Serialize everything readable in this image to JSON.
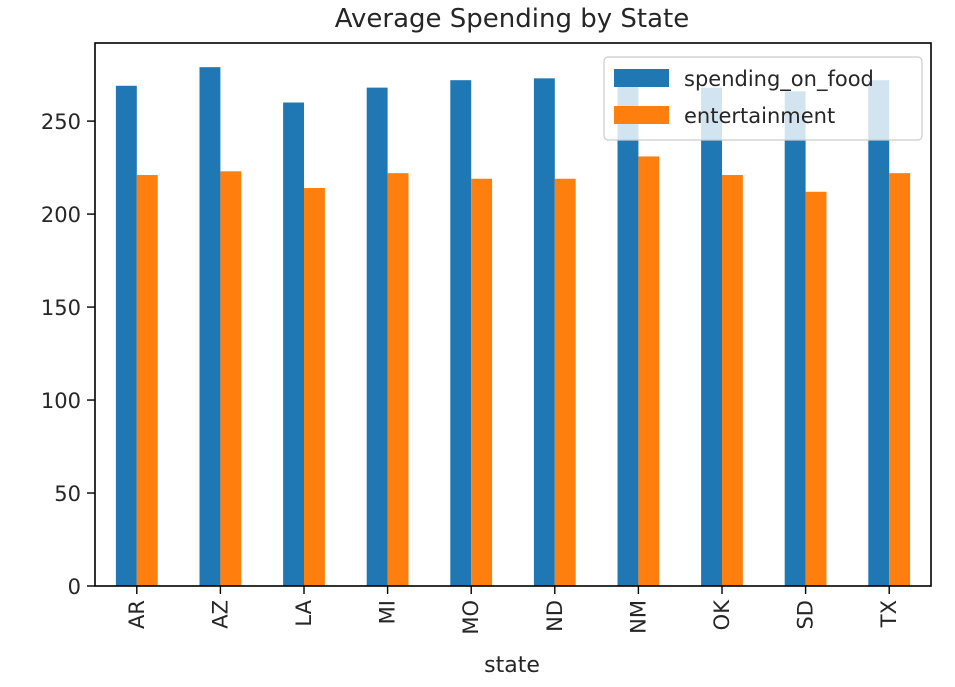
{
  "chart_data": {
    "type": "bar",
    "title": "Average Spending by State",
    "xlabel": "state",
    "ylabel": "",
    "categories": [
      "AR",
      "AZ",
      "LA",
      "MI",
      "MO",
      "ND",
      "NM",
      "OK",
      "SD",
      "TX"
    ],
    "series": [
      {
        "name": "spending_on_food",
        "color": "#1f77b4",
        "values": [
          269,
          279,
          260,
          268,
          272,
          273,
          271,
          268,
          266,
          272
        ]
      },
      {
        "name": "entertainment",
        "color": "#ff7f0e",
        "values": [
          221,
          223,
          214,
          222,
          219,
          219,
          231,
          221,
          212,
          222
        ]
      }
    ],
    "ylim": [
      0,
      292
    ],
    "yticks": [
      0,
      50,
      100,
      150,
      200,
      250
    ],
    "legend_position": "top-right",
    "grid": false
  }
}
